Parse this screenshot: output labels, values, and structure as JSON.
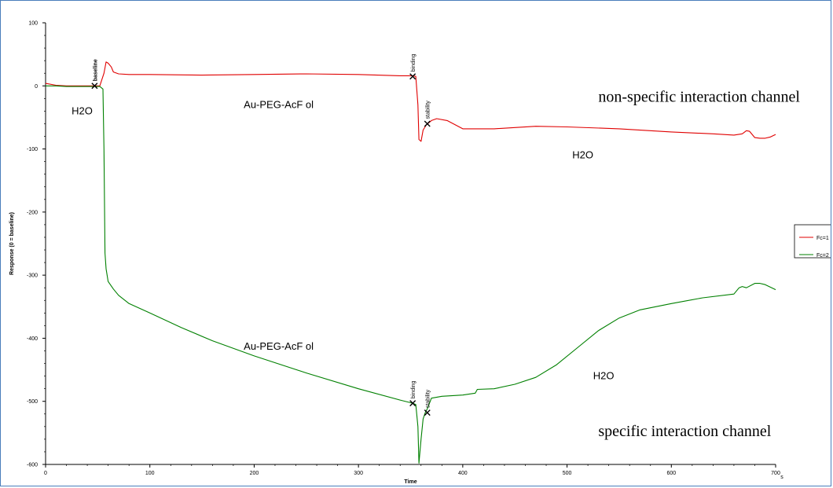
{
  "chart_data": {
    "type": "line",
    "title": "",
    "xlabel": "Time",
    "ylabel": "Response (0 = baseline)",
    "x_unit": "s",
    "xlim": [
      0,
      700
    ],
    "ylim": [
      -600,
      100
    ],
    "x_ticks": [
      0,
      100,
      200,
      300,
      400,
      500,
      600,
      700
    ],
    "y_ticks": [
      100,
      0,
      -100,
      -200,
      -300,
      -400,
      -500,
      -600
    ],
    "grid": false,
    "legend_position": "right",
    "series": [
      {
        "name": "Fc=1",
        "color": "#e00000",
        "x": [
          0,
          10,
          20,
          30,
          40,
          47,
          52,
          56,
          58,
          60,
          63,
          65,
          70,
          80,
          100,
          150,
          200,
          250,
          300,
          340,
          352,
          355,
          357,
          358,
          360,
          362,
          365,
          370,
          375,
          385,
          400,
          430,
          470,
          500,
          550,
          600,
          640,
          660,
          668,
          672,
          675,
          680,
          685,
          690,
          695,
          700
        ],
        "y": [
          4,
          1,
          0,
          0,
          0,
          0,
          0,
          20,
          38,
          36,
          30,
          22,
          19,
          18,
          18,
          17,
          18,
          19,
          18,
          16,
          16,
          15,
          -30,
          -85,
          -88,
          -70,
          -62,
          -55,
          -52,
          -55,
          -68,
          -68,
          -64,
          -65,
          -68,
          -73,
          -76,
          -78,
          -76,
          -71,
          -72,
          -82,
          -83,
          -83,
          -81,
          -77
        ]
      },
      {
        "name": "Fc=2",
        "color": "#008000",
        "x": [
          0,
          10,
          20,
          30,
          40,
          47,
          52,
          55,
          56,
          57,
          58,
          60,
          65,
          70,
          80,
          100,
          130,
          160,
          200,
          250,
          300,
          340,
          352,
          355,
          357,
          358,
          360,
          362,
          364,
          366,
          370,
          380,
          400,
          412,
          414,
          430,
          450,
          470,
          490,
          510,
          530,
          550,
          570,
          600,
          630,
          660,
          665,
          668,
          672,
          680,
          685,
          690,
          700
        ],
        "y": [
          0,
          0,
          -1,
          -1,
          -1,
          -1,
          -1,
          -5,
          -100,
          -265,
          -290,
          -310,
          -322,
          -332,
          -345,
          -360,
          -383,
          -404,
          -428,
          -455,
          -480,
          -498,
          -503,
          -505,
          -540,
          -598,
          -560,
          -528,
          -518,
          -512,
          -495,
          -492,
          -490,
          -487,
          -481,
          -480,
          -473,
          -462,
          -442,
          -415,
          -388,
          -368,
          -355,
          -345,
          -336,
          -330,
          -320,
          -318,
          -320,
          -313,
          -313,
          -315,
          -323
        ]
      }
    ],
    "markers": [
      {
        "series": "Fc=1",
        "x": 47,
        "y": 0,
        "label": "baseline"
      },
      {
        "series": "Fc=1",
        "x": 352,
        "y": 15,
        "label": "binding"
      },
      {
        "series": "Fc=1",
        "x": 366,
        "y": -60,
        "label": "stability"
      },
      {
        "series": "Fc=2",
        "x": 352,
        "y": -503,
        "label": "binding"
      },
      {
        "series": "Fc=2",
        "x": 366,
        "y": -518,
        "label": "stability"
      }
    ],
    "annotations": [
      {
        "text": "H2O",
        "x": 25,
        "y": -45,
        "style": "sans"
      },
      {
        "text": "Au-PEG-AcF ol",
        "x": 190,
        "y": -35,
        "style": "sans"
      },
      {
        "text": "non-specific interaction channel",
        "x": 530,
        "y": -25,
        "style": "serif"
      },
      {
        "text": "H2O",
        "x": 505,
        "y": -115,
        "style": "sans"
      },
      {
        "text": "Au-PEG-AcF ol",
        "x": 190,
        "y": -418,
        "style": "sans"
      },
      {
        "text": "H2O",
        "x": 525,
        "y": -465,
        "style": "sans"
      },
      {
        "text": "specific interaction channel",
        "x": 530,
        "y": -555,
        "style": "serif"
      }
    ]
  }
}
